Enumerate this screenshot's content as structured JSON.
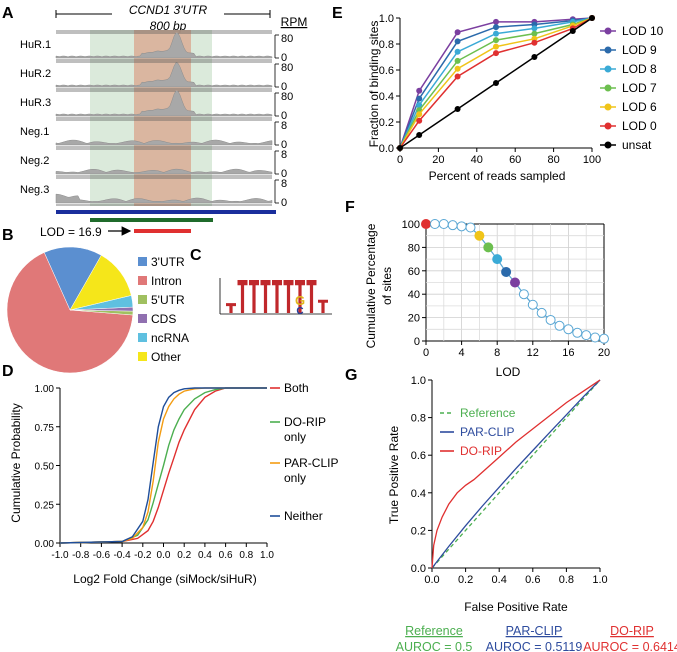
{
  "panel_labels": {
    "a": "A",
    "b": "B",
    "c": "C",
    "d": "D",
    "e": "E",
    "f": "F",
    "g": "G"
  },
  "colors": {
    "lod10": "#7b3fa0",
    "lod9": "#2b6aab",
    "lod8": "#3aaad6",
    "lod7": "#6cbf4f",
    "lod6": "#f0c419",
    "lod0": "#e03030",
    "unsat": "#000000",
    "both": "#e03030",
    "do_rip_only": "#4caf50",
    "par_clip_only": "#f39c12",
    "neither": "#1f4e9a",
    "reference": "#4caf50",
    "par_clip": "#2e4c9e",
    "do_rip": "#e03030"
  },
  "chart_data": [
    {
      "panel": "A",
      "type": "genome-track",
      "title": "CCND1 3'UTR",
      "scale_label": "800 bp",
      "unit_label": "RPM",
      "tracks": [
        {
          "name": "HuR.1",
          "max": "80",
          "min": "0"
        },
        {
          "name": "HuR.2",
          "max": "80",
          "min": "0"
        },
        {
          "name": "HuR.3",
          "max": "80",
          "min": "0"
        },
        {
          "name": "Neg.1",
          "max": "8",
          "min": "0"
        },
        {
          "name": "Neg.2",
          "max": "8",
          "min": "0"
        },
        {
          "name": "Neg.3",
          "max": "8",
          "min": "0"
        }
      ],
      "lod_label": "LOD = 16.9"
    },
    {
      "panel": "B",
      "type": "pie",
      "slices": [
        {
          "label": "3'UTR",
          "value": 15,
          "color": "#5b8fd0"
        },
        {
          "label": "Intron",
          "value": 67,
          "color": "#e07878"
        },
        {
          "label": "5'UTR",
          "value": 1,
          "color": "#a0c060"
        },
        {
          "label": "CDS",
          "value": 1,
          "color": "#9070b0"
        },
        {
          "label": "ncRNA",
          "value": 3,
          "color": "#5fc0e0"
        },
        {
          "label": "Other",
          "value": 13,
          "color": "#f5e61a"
        }
      ]
    },
    {
      "panel": "C",
      "type": "sequence-logo",
      "letters": [
        "T",
        "T",
        "T",
        "T",
        "T",
        "T",
        "T",
        "T",
        "T"
      ],
      "sub_letters": [
        "G",
        "C"
      ]
    },
    {
      "panel": "D",
      "type": "line",
      "xlabel": "Log2 Fold Change (siMock/siHuR)",
      "ylabel": "Cumulative Probability",
      "xlim": [
        -1.0,
        1.0
      ],
      "ylim": [
        0,
        1.0
      ],
      "xticks": [
        "-1.0",
        "-0.8",
        "-0.6",
        "-0.4",
        "-0.2",
        "0.0",
        "0.2",
        "0.4",
        "0.6",
        "0.8",
        "1.0"
      ],
      "yticks": [
        "0.00",
        "0.25",
        "0.50",
        "0.75",
        "1.00"
      ],
      "series": [
        {
          "name": "Both",
          "key": "both",
          "x": [
            -1.0,
            -0.4,
            -0.25,
            -0.15,
            -0.1,
            -0.05,
            0.0,
            0.05,
            0.1,
            0.15,
            0.2,
            0.3,
            0.4,
            0.5,
            0.6,
            1.0
          ],
          "y": [
            0,
            0.01,
            0.03,
            0.08,
            0.14,
            0.23,
            0.34,
            0.45,
            0.55,
            0.65,
            0.73,
            0.86,
            0.94,
            0.98,
            1.0,
            1.0
          ]
        },
        {
          "name": "DO-RIP only",
          "key": "do_rip_only",
          "x": [
            -1.0,
            -0.4,
            -0.25,
            -0.15,
            -0.1,
            -0.05,
            0.0,
            0.05,
            0.1,
            0.15,
            0.2,
            0.3,
            0.4,
            0.5,
            0.6,
            1.0
          ],
          "y": [
            0,
            0.01,
            0.05,
            0.15,
            0.26,
            0.38,
            0.5,
            0.63,
            0.73,
            0.8,
            0.86,
            0.93,
            0.97,
            0.99,
            1.0,
            1.0
          ]
        },
        {
          "name": "PAR-CLIP only",
          "key": "par_clip_only",
          "x": [
            -1.0,
            -0.4,
            -0.3,
            -0.2,
            -0.15,
            -0.1,
            -0.05,
            0.0,
            0.05,
            0.1,
            0.15,
            0.2,
            0.3,
            0.4,
            0.5,
            1.0
          ],
          "y": [
            0,
            0.01,
            0.03,
            0.1,
            0.2,
            0.4,
            0.65,
            0.8,
            0.88,
            0.93,
            0.96,
            0.98,
            0.995,
            1.0,
            1.0,
            1.0
          ]
        },
        {
          "name": "Neither",
          "key": "neither",
          "x": [
            -1.0,
            -0.4,
            -0.3,
            -0.2,
            -0.15,
            -0.1,
            -0.05,
            0.0,
            0.05,
            0.1,
            0.15,
            0.2,
            0.3,
            0.4,
            1.0
          ],
          "y": [
            0,
            0.01,
            0.04,
            0.14,
            0.28,
            0.52,
            0.75,
            0.88,
            0.94,
            0.97,
            0.985,
            0.995,
            1.0,
            1.0,
            1.0
          ]
        }
      ],
      "legend": [
        "Both",
        "DO-RIP\nonly",
        "PAR-CLIP\nonly",
        "Neither"
      ]
    },
    {
      "panel": "E",
      "type": "line",
      "xlabel": "Percent of reads sampled",
      "ylabel": "Fraction of binding sites",
      "xlim": [
        0,
        100
      ],
      "ylim": [
        0,
        1.0
      ],
      "xticks": [
        "0",
        "20",
        "40",
        "60",
        "80",
        "100"
      ],
      "yticks": [
        "0.0",
        "0.2",
        "0.4",
        "0.6",
        "0.8",
        "1.0"
      ],
      "x": [
        0,
        10,
        30,
        50,
        70,
        90,
        100
      ],
      "series": [
        {
          "name": "LOD 10",
          "key": "lod10",
          "values": [
            0,
            0.44,
            0.89,
            0.97,
            0.97,
            0.99,
            1.0
          ]
        },
        {
          "name": "LOD 9",
          "key": "lod9",
          "values": [
            0,
            0.38,
            0.82,
            0.93,
            0.95,
            0.98,
            1.0
          ]
        },
        {
          "name": "LOD 8",
          "key": "lod8",
          "values": [
            0,
            0.33,
            0.74,
            0.88,
            0.92,
            0.97,
            1.0
          ]
        },
        {
          "name": "LOD 7",
          "key": "lod7",
          "values": [
            0,
            0.29,
            0.67,
            0.83,
            0.88,
            0.95,
            1.0
          ]
        },
        {
          "name": "LOD 6",
          "key": "lod6",
          "values": [
            0,
            0.26,
            0.61,
            0.78,
            0.84,
            0.94,
            1.0
          ]
        },
        {
          "name": "LOD 0",
          "key": "lod0",
          "values": [
            0,
            0.21,
            0.55,
            0.73,
            0.81,
            0.92,
            1.0
          ]
        },
        {
          "name": "unsat",
          "key": "unsat",
          "values": [
            0,
            0.1,
            0.3,
            0.5,
            0.7,
            0.9,
            1.0
          ]
        }
      ]
    },
    {
      "panel": "F",
      "type": "scatter",
      "xlabel": "LOD",
      "ylabel": "Cumulative Percentage\nof sites",
      "xlim": [
        0,
        20
      ],
      "ylim": [
        0,
        100
      ],
      "xticks": [
        "0",
        "4",
        "8",
        "12",
        "16",
        "20"
      ],
      "yticks": [
        "0",
        "20",
        "40",
        "60",
        "80",
        "100"
      ],
      "x": [
        0,
        1,
        2,
        3,
        4,
        5,
        6,
        7,
        8,
        9,
        10,
        11,
        12,
        13,
        14,
        15,
        16,
        17,
        18,
        19,
        20
      ],
      "values": [
        100,
        100,
        100,
        99,
        98,
        97,
        90,
        80,
        70,
        59,
        50,
        40,
        31,
        24,
        18,
        13,
        10,
        7,
        5,
        3,
        2
      ],
      "highlight": {
        "0": "lod0",
        "6": "lod6",
        "7": "lod7",
        "8": "lod8",
        "9": "lod9",
        "10": "lod10"
      }
    },
    {
      "panel": "G",
      "type": "line",
      "xlabel": "False Positive Rate",
      "ylabel": "True Positive Rate",
      "xlim": [
        0,
        1.0
      ],
      "ylim": [
        0,
        1.0
      ],
      "xticks": [
        "0.0",
        "0.2",
        "0.4",
        "0.6",
        "0.8",
        "1.0"
      ],
      "yticks": [
        "0.0",
        "0.2",
        "0.4",
        "0.6",
        "0.8",
        "1.0"
      ],
      "series": [
        {
          "name": "Reference",
          "key": "reference",
          "dashed": true,
          "x": [
            0,
            1
          ],
          "y": [
            0,
            1
          ]
        },
        {
          "name": "PAR-CLIP",
          "key": "par_clip",
          "x": [
            0,
            0.1,
            0.2,
            0.3,
            0.4,
            0.5,
            0.6,
            0.7,
            0.8,
            0.9,
            1.0
          ],
          "y": [
            0,
            0.115,
            0.225,
            0.33,
            0.43,
            0.53,
            0.625,
            0.72,
            0.815,
            0.91,
            1.0
          ]
        },
        {
          "name": "DO-RIP",
          "key": "do_rip",
          "x": [
            0,
            0.01,
            0.03,
            0.06,
            0.1,
            0.15,
            0.2,
            0.25,
            0.3,
            0.4,
            0.5,
            0.6,
            0.7,
            0.8,
            0.9,
            1.0
          ],
          "y": [
            0,
            0.12,
            0.2,
            0.27,
            0.34,
            0.4,
            0.44,
            0.47,
            0.51,
            0.59,
            0.67,
            0.74,
            0.81,
            0.88,
            0.94,
            1.0
          ]
        }
      ],
      "auroc": [
        {
          "name": "Reference",
          "key": "reference",
          "value": "AUROC = 0.5"
        },
        {
          "name": "PAR-CLIP",
          "key": "par_clip",
          "value": "AUROC = 0.5119"
        },
        {
          "name": "DO-RIP",
          "key": "do_rip",
          "value": "AUROC = 0.6414"
        }
      ]
    }
  ]
}
